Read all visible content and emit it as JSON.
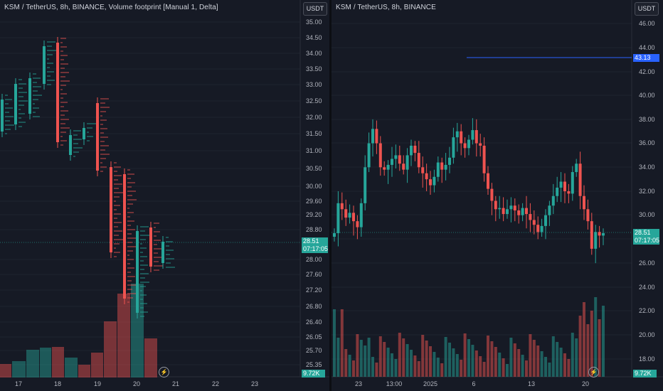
{
  "left": {
    "legend": "KSM / TetherUS, 8h, BINANCE, Volume footprint [Manual 1, Delta]",
    "currency": "USDT",
    "price_labels": [
      "35.00",
      "34.50",
      "34.00",
      "33.50",
      "33.00",
      "32.50",
      "32.00",
      "31.50",
      "31.00",
      "30.50",
      "30.00",
      "29.60",
      "29.20",
      "28.80",
      "28.00",
      "27.60",
      "27.20",
      "26.80",
      "26.40",
      "26.05",
      "25.70",
      "25.35"
    ],
    "time_labels": [
      "17",
      "18",
      "19",
      "20",
      "21",
      "22",
      "23"
    ],
    "last_price": "28.51",
    "countdown": "07:17:05",
    "volume_tag": "9.72K"
  },
  "right": {
    "legend": "KSM / TetherUS, 8h, BINANCE",
    "currency": "USDT",
    "price_labels": [
      "46.00",
      "44.00",
      "42.00",
      "40.00",
      "38.00",
      "36.00",
      "34.00",
      "32.00",
      "30.00",
      "28.00",
      "26.00",
      "24.00",
      "22.00",
      "20.00",
      "18.00"
    ],
    "time_labels": [
      "23",
      "13:00",
      "2025",
      "6",
      "13",
      "20"
    ],
    "alert_price": "43.13",
    "last_price": "28.51",
    "countdown": "07:17:05",
    "volume_tag": "9.72K"
  },
  "colors": {
    "up": "#26a69a",
    "down": "#ef5350",
    "alert": "#2962ff",
    "bg": "#161a25",
    "grid": "#1f2430"
  },
  "icons": {
    "lightning": "⚡"
  }
}
